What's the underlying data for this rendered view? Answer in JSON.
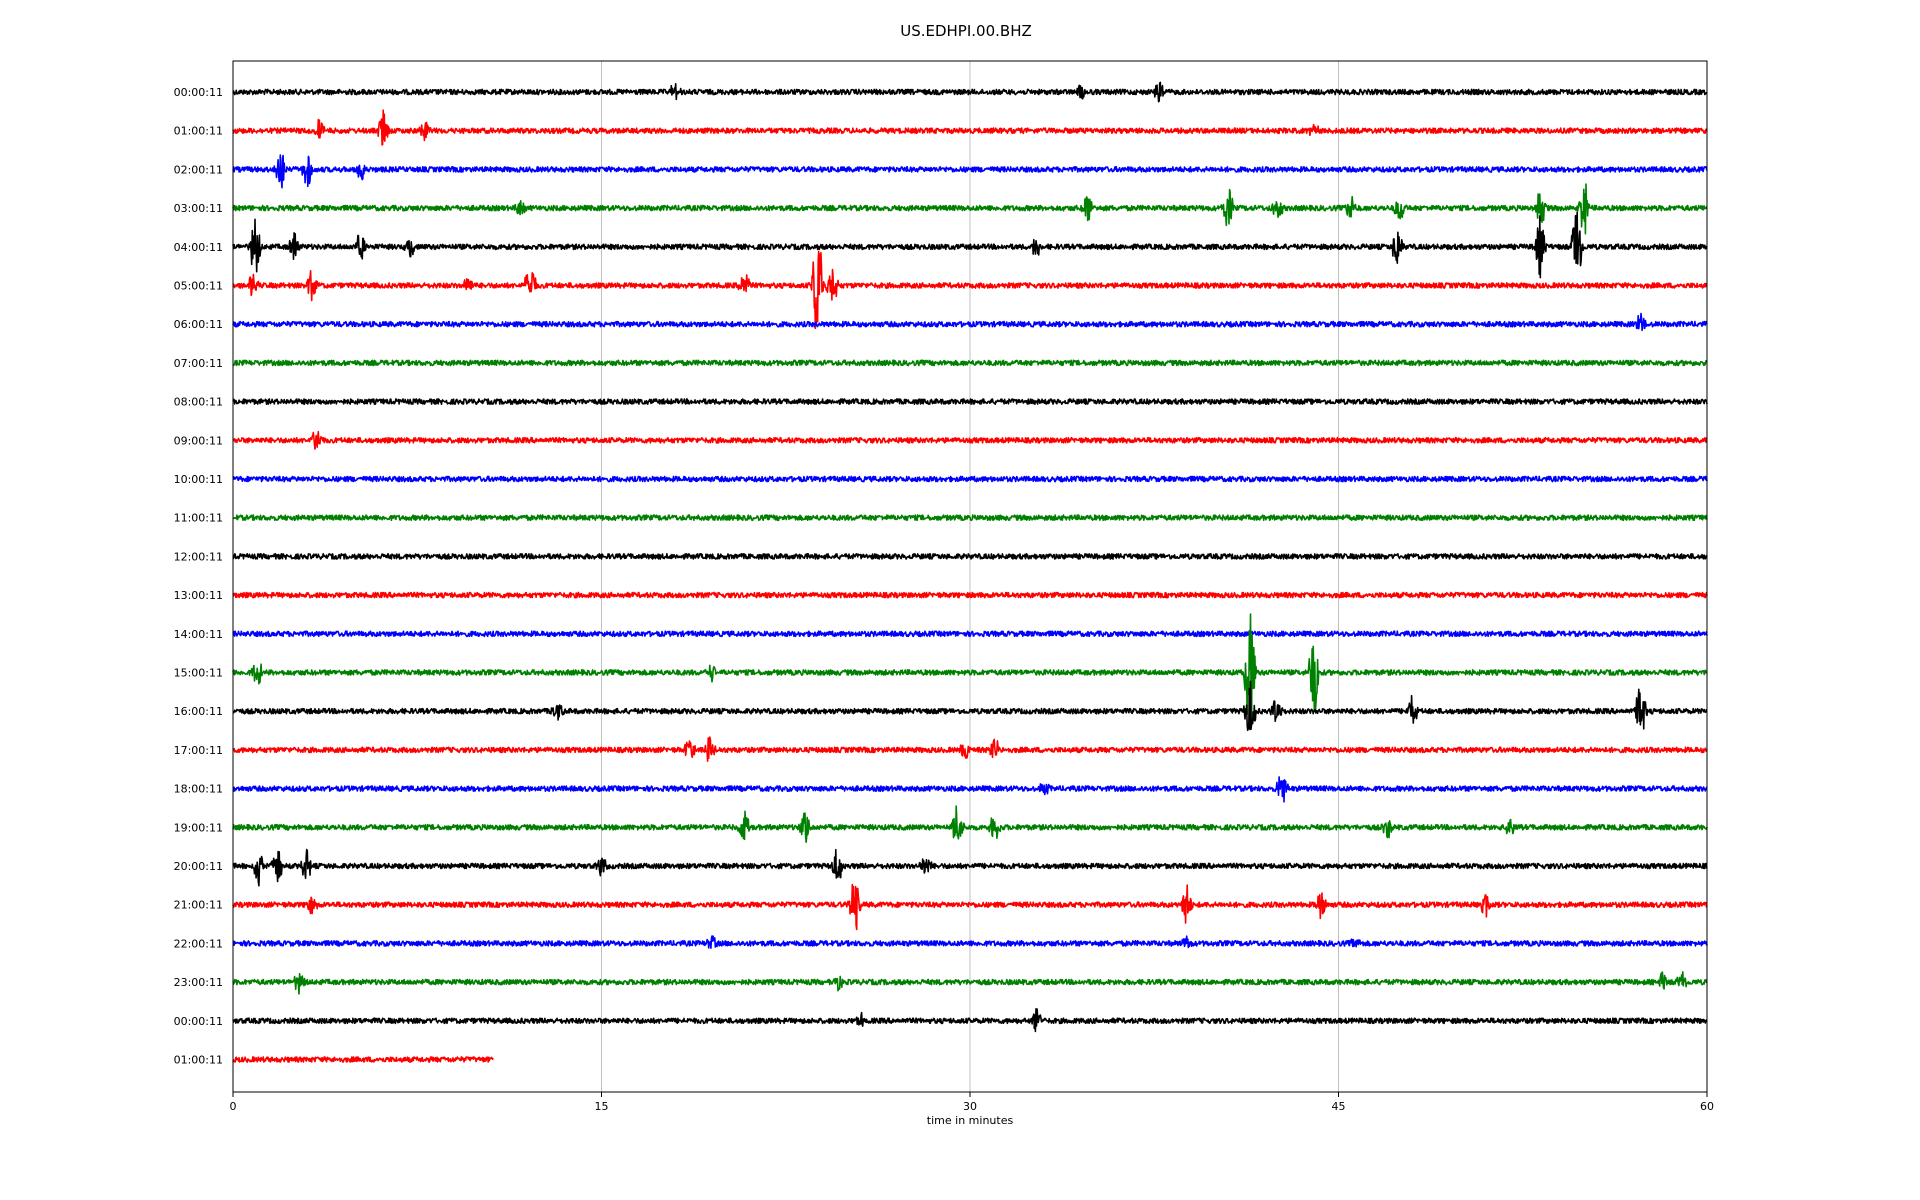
{
  "chart_data": {
    "type": "line",
    "title": "US.EDHPI.00.BHZ",
    "xlabel": "time in minutes",
    "ylabel": "",
    "xlim": [
      0,
      60
    ],
    "x_ticks": [
      "0",
      "15",
      "30",
      "45",
      "60"
    ],
    "x_tick_values": [
      0,
      15,
      30,
      45,
      60
    ],
    "grid": "vertical",
    "colors": [
      "#000000",
      "#ff0000",
      "#0000ff",
      "#008000"
    ],
    "rows": [
      {
        "label": "00:00:11",
        "color": "#000000",
        "end_minute": 60,
        "events": [
          {
            "t": 18,
            "amp": 0.25
          },
          {
            "t": 34.5,
            "amp": 0.2
          },
          {
            "t": 37.7,
            "amp": 0.3
          }
        ]
      },
      {
        "label": "01:00:11",
        "color": "#ff0000",
        "end_minute": 60,
        "events": [
          {
            "t": 3.5,
            "amp": 0.35
          },
          {
            "t": 6.1,
            "amp": 0.6
          },
          {
            "t": 7.8,
            "amp": 0.35
          },
          {
            "t": 44,
            "amp": 0.15
          }
        ]
      },
      {
        "label": "02:00:11",
        "color": "#0000ff",
        "end_minute": 60,
        "events": [
          {
            "t": 1.9,
            "amp": 0.7
          },
          {
            "t": 3.0,
            "amp": 0.6
          },
          {
            "t": 5.2,
            "amp": 0.3
          }
        ]
      },
      {
        "label": "03:00:11",
        "color": "#008000",
        "end_minute": 60,
        "events": [
          {
            "t": 11.7,
            "amp": 0.2
          },
          {
            "t": 34.8,
            "amp": 0.45
          },
          {
            "t": 40.5,
            "amp": 0.6
          },
          {
            "t": 42.5,
            "amp": 0.4
          },
          {
            "t": 45.5,
            "amp": 0.35
          },
          {
            "t": 47.5,
            "amp": 0.4
          },
          {
            "t": 53.2,
            "amp": 0.6
          },
          {
            "t": 55,
            "amp": 0.8
          }
        ]
      },
      {
        "label": "04:00:11",
        "color": "#000000",
        "end_minute": 60,
        "events": [
          {
            "t": 0.9,
            "amp": 0.9
          },
          {
            "t": 2.5,
            "amp": 0.4
          },
          {
            "t": 5.2,
            "amp": 0.45
          },
          {
            "t": 7.2,
            "amp": 0.3
          },
          {
            "t": 32.7,
            "amp": 0.4
          },
          {
            "t": 47.4,
            "amp": 0.6
          },
          {
            "t": 53.2,
            "amp": 0.8
          },
          {
            "t": 54.7,
            "amp": 1.2
          }
        ]
      },
      {
        "label": "05:00:11",
        "color": "#ff0000",
        "end_minute": 60,
        "events": [
          {
            "t": 0.8,
            "amp": 0.4
          },
          {
            "t": 3.2,
            "amp": 0.45
          },
          {
            "t": 9.6,
            "amp": 0.3
          },
          {
            "t": 12.1,
            "amp": 0.65
          },
          {
            "t": 20.8,
            "amp": 0.5
          },
          {
            "t": 23.8,
            "amp": 1.9
          },
          {
            "t": 24.4,
            "amp": 0.7
          }
        ]
      },
      {
        "label": "06:00:11",
        "color": "#0000ff",
        "end_minute": 60,
        "events": [
          {
            "t": 57.3,
            "amp": 0.3
          }
        ]
      },
      {
        "label": "07:00:11",
        "color": "#008000",
        "end_minute": 60,
        "events": []
      },
      {
        "label": "08:00:11",
        "color": "#000000",
        "end_minute": 60,
        "events": []
      },
      {
        "label": "09:00:11",
        "color": "#ff0000",
        "end_minute": 60,
        "events": [
          {
            "t": 3.4,
            "amp": 0.35
          }
        ]
      },
      {
        "label": "10:00:11",
        "color": "#0000ff",
        "end_minute": 60,
        "events": []
      },
      {
        "label": "11:00:11",
        "color": "#008000",
        "end_minute": 60,
        "events": []
      },
      {
        "label": "12:00:11",
        "color": "#000000",
        "end_minute": 60,
        "events": []
      },
      {
        "label": "13:00:11",
        "color": "#ff0000",
        "end_minute": 60,
        "events": []
      },
      {
        "label": "14:00:11",
        "color": "#0000ff",
        "end_minute": 60,
        "events": []
      },
      {
        "label": "15:00:11",
        "color": "#008000",
        "end_minute": 60,
        "events": [
          {
            "t": 1.0,
            "amp": 0.35
          },
          {
            "t": 19.5,
            "amp": 0.25
          },
          {
            "t": 41.4,
            "amp": 1.8
          },
          {
            "t": 44.0,
            "amp": 1.25
          }
        ]
      },
      {
        "label": "16:00:11",
        "color": "#000000",
        "end_minute": 60,
        "events": [
          {
            "t": 13.2,
            "amp": 0.3
          },
          {
            "t": 41.4,
            "amp": 0.9
          },
          {
            "t": 42.5,
            "amp": 0.5
          },
          {
            "t": 48,
            "amp": 0.4
          },
          {
            "t": 57.3,
            "amp": 0.8
          }
        ]
      },
      {
        "label": "17:00:11",
        "color": "#ff0000",
        "end_minute": 60,
        "events": [
          {
            "t": 18.6,
            "amp": 0.35
          },
          {
            "t": 19.4,
            "amp": 0.45
          },
          {
            "t": 29.8,
            "amp": 0.3
          },
          {
            "t": 31.0,
            "amp": 0.3
          }
        ]
      },
      {
        "label": "18:00:11",
        "color": "#0000ff",
        "end_minute": 60,
        "events": [
          {
            "t": 33,
            "amp": 0.2
          },
          {
            "t": 42.7,
            "amp": 0.55
          }
        ]
      },
      {
        "label": "19:00:11",
        "color": "#008000",
        "end_minute": 60,
        "events": [
          {
            "t": 20.8,
            "amp": 0.45
          },
          {
            "t": 23.3,
            "amp": 0.5
          },
          {
            "t": 29.5,
            "amp": 0.65
          },
          {
            "t": 31,
            "amp": 0.4
          },
          {
            "t": 47,
            "amp": 0.3
          },
          {
            "t": 52,
            "amp": 0.3
          }
        ]
      },
      {
        "label": "20:00:11",
        "color": "#000000",
        "end_minute": 60,
        "events": [
          {
            "t": 1.0,
            "amp": 0.6
          },
          {
            "t": 1.8,
            "amp": 0.55
          },
          {
            "t": 3.0,
            "amp": 0.45
          },
          {
            "t": 15,
            "amp": 0.3
          },
          {
            "t": 24.6,
            "amp": 0.55
          },
          {
            "t": 28.2,
            "amp": 0.3
          }
        ]
      },
      {
        "label": "21:00:11",
        "color": "#ff0000",
        "end_minute": 60,
        "events": [
          {
            "t": 3.2,
            "amp": 0.3
          },
          {
            "t": 25.3,
            "amp": 0.9
          },
          {
            "t": 38.8,
            "amp": 0.6
          },
          {
            "t": 44.3,
            "amp": 0.5
          },
          {
            "t": 51.0,
            "amp": 0.3
          }
        ]
      },
      {
        "label": "22:00:11",
        "color": "#0000ff",
        "end_minute": 60,
        "events": [
          {
            "t": 19.5,
            "amp": 0.2
          },
          {
            "t": 38.8,
            "amp": 0.2
          },
          {
            "t": 45.7,
            "amp": 0.2
          }
        ]
      },
      {
        "label": "23:00:11",
        "color": "#008000",
        "end_minute": 60,
        "events": [
          {
            "t": 2.7,
            "amp": 0.3
          },
          {
            "t": 24.6,
            "amp": 0.25
          },
          {
            "t": 58.2,
            "amp": 0.35
          },
          {
            "t": 59.0,
            "amp": 0.3
          }
        ]
      },
      {
        "label": "00:00:11",
        "color": "#000000",
        "end_minute": 60,
        "events": [
          {
            "t": 25.6,
            "amp": 0.2
          },
          {
            "t": 32.7,
            "amp": 0.4
          }
        ]
      },
      {
        "label": "01:00:11",
        "color": "#ff0000",
        "end_minute": 10.6,
        "events": []
      }
    ]
  }
}
